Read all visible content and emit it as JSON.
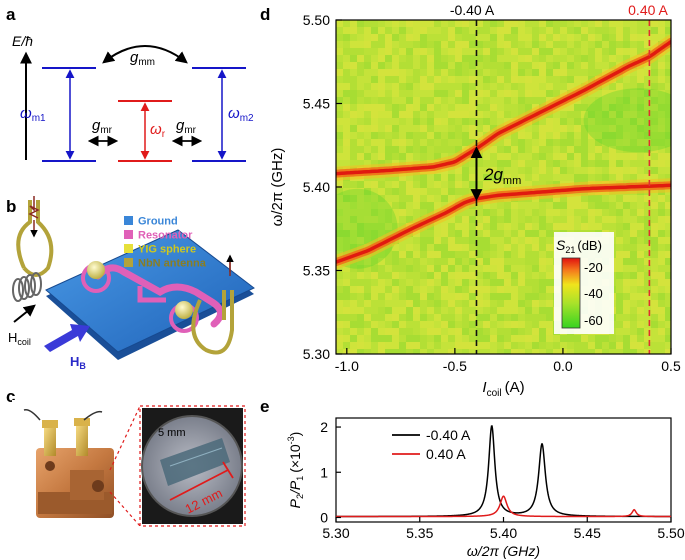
{
  "panels": {
    "a": {
      "letter": "a",
      "energy_axis_label": "E/ħ",
      "labels": {
        "g_mm": "g",
        "g_mm_sub": "mm",
        "w_m1": "ω",
        "w_m1_sub": "m1",
        "w_m2": "ω",
        "w_m2_sub": "m2",
        "w_r": "ω",
        "w_r_sub": "r",
        "g_mr": "g",
        "g_mr_sub": "mr"
      },
      "colors": {
        "magnon": "#1515c8",
        "resonator": "#e01b1b",
        "arrow": "#000000"
      }
    },
    "b": {
      "letter": "b",
      "legend": [
        {
          "label": "Ground",
          "color": "#3a86d8"
        },
        {
          "label": "Resonator",
          "color": "#e060b8"
        },
        {
          "label": "YIG sphere",
          "color": "#e6e03a"
        },
        {
          "label": "NbN antenna",
          "color": "#b3a33a"
        }
      ],
      "h_coil": "H",
      "h_coil_sub": "coil",
      "h_b": "H",
      "h_b_sub": "B"
    },
    "c": {
      "letter": "c",
      "scale_small": "5 mm",
      "scale_large": "12 mm"
    },
    "d": {
      "letter": "d",
      "marker_left": "-0.40 A",
      "marker_right": "0.40 A",
      "gap_label": "2g",
      "gap_label_sub": "mm",
      "colorbar": {
        "title": "S",
        "title_sub": "21",
        "title_unit": "(dB)",
        "ticks": [
          "-20",
          "-40",
          "-60"
        ]
      }
    },
    "e": {
      "letter": "e"
    }
  },
  "chart_data": [
    {
      "type": "heatmap",
      "panel": "d",
      "xlabel": "I",
      "xlabel_sub": "coil",
      "xlabel_unit": "(A)",
      "ylabel": "ω/2π (GHz)",
      "xlim": [
        -1.05,
        0.5
      ],
      "ylim": [
        5.3,
        5.5
      ],
      "xticks": [
        -1.0,
        -0.5,
        0.0,
        0.5
      ],
      "xtick_labels": [
        "-1.0",
        "-0.5",
        "0.0",
        "0.5"
      ],
      "yticks": [
        5.3,
        5.35,
        5.4,
        5.45,
        5.5
      ],
      "ytick_labels": [
        "5.30",
        "5.35",
        "5.40",
        "5.45",
        "5.50"
      ],
      "colorbar_range_db": [
        -65,
        -20
      ],
      "background_db": -50,
      "dashed_lines": [
        {
          "x": -0.4,
          "label": "-0.40 A",
          "color": "#111111"
        },
        {
          "x": 0.4,
          "label": "0.40 A",
          "color": "#e03030"
        }
      ],
      "upper_branch": {
        "x": [
          -1.05,
          -0.8,
          -0.6,
          -0.5,
          -0.4,
          -0.3,
          -0.1,
          0.1,
          0.3,
          0.4,
          0.5
        ],
        "y": [
          5.408,
          5.41,
          5.412,
          5.415,
          5.423,
          5.432,
          5.445,
          5.458,
          5.472,
          5.478,
          5.487
        ]
      },
      "lower_branch": {
        "x": [
          -1.05,
          -0.9,
          -0.7,
          -0.55,
          -0.45,
          -0.4,
          -0.3,
          -0.1,
          0.1,
          0.3,
          0.5
        ],
        "y": [
          5.355,
          5.362,
          5.375,
          5.384,
          5.391,
          5.393,
          5.395,
          5.397,
          5.399,
          5.4,
          5.401
        ]
      },
      "gap_arrow_y": [
        5.393,
        5.423
      ]
    },
    {
      "type": "line",
      "panel": "e",
      "xlabel": "ω/2π (GHz)",
      "ylabel": "P",
      "ylabel_sub2": "2",
      "ylabel_mid": "/P",
      "ylabel_sub1": "1",
      "ylabel_unit": "(×10",
      "ylabel_exp": "-3",
      "ylabel_close": ")",
      "xlim": [
        5.3,
        5.5
      ],
      "ylim": [
        -0.1,
        2.2
      ],
      "xticks": [
        5.3,
        5.35,
        5.4,
        5.45,
        5.5
      ],
      "xtick_labels": [
        "5.30",
        "5.35",
        "5.40",
        "5.45",
        "5.50"
      ],
      "yticks": [
        0,
        1,
        2
      ],
      "ytick_labels": [
        "0",
        "1",
        "2"
      ],
      "series": [
        {
          "name": "-0.40 A",
          "color": "#000000",
          "peaks": [
            {
              "x0": 5.393,
              "amp": 2.0,
              "width": 0.0022
            },
            {
              "x0": 5.423,
              "amp": 1.6,
              "width": 0.0024
            }
          ]
        },
        {
          "name": "0.40 A",
          "color": "#e01b1b",
          "peaks": [
            {
              "x0": 5.4,
              "amp": 0.45,
              "width": 0.0025
            },
            {
              "x0": 5.478,
              "amp": 0.15,
              "width": 0.0015
            }
          ]
        }
      ]
    }
  ]
}
